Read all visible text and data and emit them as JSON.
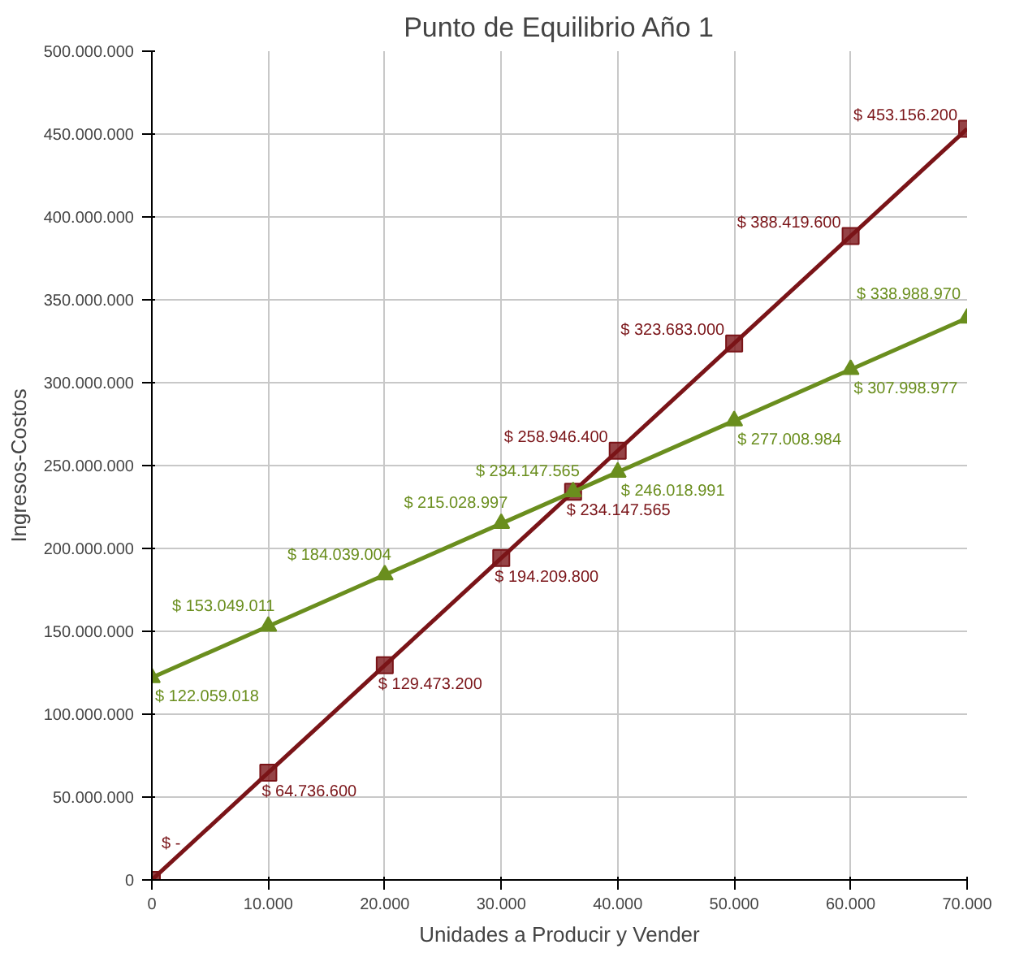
{
  "chart_data": {
    "type": "line",
    "title": "Punto de Equilibrio Año 1",
    "xlabel": "Unidades a Producir y Vender",
    "ylabel": "Ingresos-Costos",
    "xlim": [
      0,
      70000
    ],
    "ylim": [
      0,
      500000000
    ],
    "xticks": [
      {
        "value": 0,
        "label": "0"
      },
      {
        "value": 10000,
        "label": "10.000"
      },
      {
        "value": 20000,
        "label": "20.000"
      },
      {
        "value": 30000,
        "label": "30.000"
      },
      {
        "value": 40000,
        "label": "40.000"
      },
      {
        "value": 50000,
        "label": "50.000"
      },
      {
        "value": 60000,
        "label": "60.000"
      },
      {
        "value": 70000,
        "label": "70.000"
      }
    ],
    "yticks": [
      {
        "value": 0,
        "label": "0"
      },
      {
        "value": 50000000,
        "label": "50.000.000"
      },
      {
        "value": 100000000,
        "label": "100.000.000"
      },
      {
        "value": 150000000,
        "label": "150.000.000"
      },
      {
        "value": 200000000,
        "label": "200.000.000"
      },
      {
        "value": 250000000,
        "label": "250.000.000"
      },
      {
        "value": 300000000,
        "label": "300.000.000"
      },
      {
        "value": 350000000,
        "label": "350.000.000"
      },
      {
        "value": 400000000,
        "label": "400.000.000"
      },
      {
        "value": 450000000,
        "label": "450.000.000"
      },
      {
        "value": 500000000,
        "label": "500.000.000"
      }
    ],
    "x": [
      0,
      10000,
      20000,
      30000,
      36170,
      40000,
      50000,
      60000,
      70000
    ],
    "grid": true,
    "line_style": "solid",
    "series": [
      {
        "color": "#7a1418",
        "marker": "square",
        "values": [
          0,
          64736600,
          129473200,
          194209800,
          234147565,
          258946400,
          323683000,
          388419600,
          453156200
        ],
        "value_labels": [
          "$ -",
          "$ 64.736.600",
          "$ 129.473.200",
          "$ 194.209.800",
          "$ 234.147.565",
          "$ 258.946.400",
          "$ 323.683.000",
          "$ 388.419.600",
          "$ 453.156.200"
        ]
      },
      {
        "color": "#6a8e1e",
        "marker": "triangle",
        "values": [
          122059018,
          153049011,
          184039004,
          215028997,
          234147565,
          246018991,
          277008984,
          307998977,
          338988970
        ],
        "value_labels": [
          "$ 122.059.018",
          "$ 153.049.011",
          "$ 184.039.004",
          "$ 215.028.997",
          "$ 234.147.565",
          "$ 246.018.991",
          "$ 277.008.984",
          "$ 307.998.977",
          "$ 338.988.970"
        ]
      }
    ]
  }
}
